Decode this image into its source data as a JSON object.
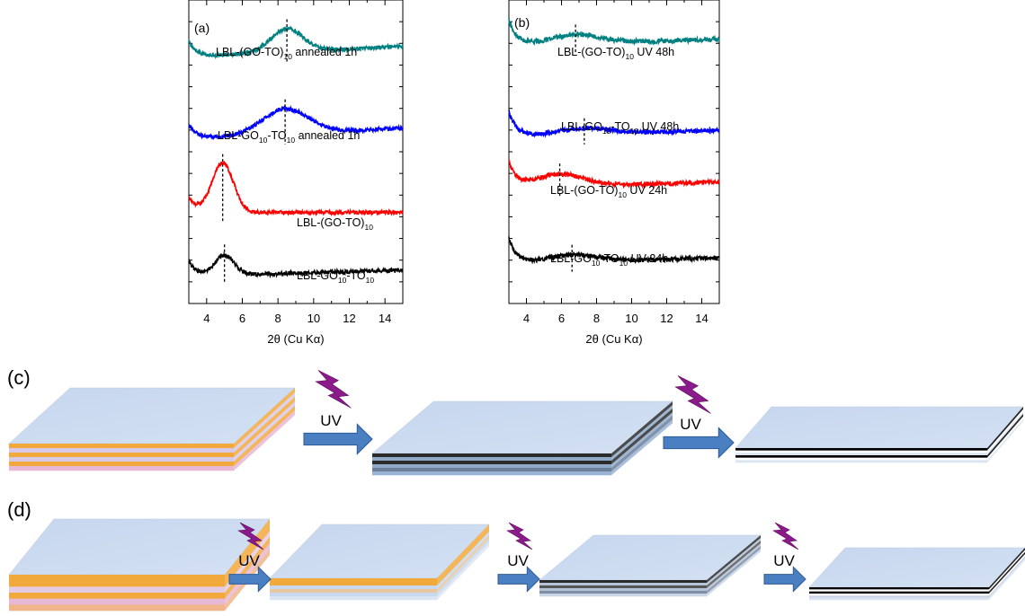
{
  "chart_data": [
    {
      "type": "line",
      "panel": "(a)",
      "xlabel": "2θ (Cu Kα)",
      "xlim": [
        3,
        15
      ],
      "xticks": [
        4,
        6,
        8,
        10,
        12,
        14
      ],
      "series": [
        {
          "label_main": "LBL-GO",
          "label_sub1": "10",
          "label_mid": "-TO",
          "label_sub2": "10",
          "label_tail": "",
          "color": "#000000",
          "peak": 5.0,
          "peak_height": 22,
          "peak_width": 0.55,
          "level": 0.1,
          "noise": 2.2
        },
        {
          "label_main": "LBL-(GO-TO)",
          "label_sub1": "10",
          "label_mid": "",
          "label_sub2": "",
          "label_tail": "",
          "color": "#ff0000",
          "peak": 4.9,
          "peak_height": 55,
          "peak_width": 0.6,
          "level": 0.3,
          "noise": 2.0
        },
        {
          "label_main": "LBL-GO",
          "label_sub1": "10",
          "label_mid": "-TO",
          "label_sub2": "10",
          "label_tail": " annealed 1h",
          "color": "#0000ff",
          "peak": 8.4,
          "peak_height": 28,
          "peak_width": 1.3,
          "level": 0.56,
          "noise": 2.2
        },
        {
          "label_main": "LBL-(GO-TO)",
          "label_sub1": "10",
          "label_mid": "",
          "label_sub2": "",
          "label_tail": " annealed 1h",
          "color": "#008080",
          "peak": 8.5,
          "peak_height": 26,
          "peak_width": 0.9,
          "level": 0.83,
          "noise": 2.2
        }
      ]
    },
    {
      "type": "line",
      "panel": "(b)",
      "xlabel": "2θ (Cu Kα)",
      "xlim": [
        3,
        15
      ],
      "xticks": [
        4,
        6,
        8,
        10,
        12,
        14
      ],
      "series": [
        {
          "label_main": "LBL-GO",
          "label_sub1": "10",
          "label_mid": "-TO",
          "label_sub2": "10",
          "label_tail": " UV 24h",
          "color": "#000000",
          "peak": 6.6,
          "peak_height": 8,
          "peak_width": 1.5,
          "level": 0.14,
          "noise": 2.4
        },
        {
          "label_main": "LBL-(GO-TO)",
          "label_sub1": "10",
          "label_mid": "",
          "label_sub2": "",
          "label_tail": " UV 24h",
          "color": "#ff0000",
          "peak": 5.9,
          "peak_height": 14,
          "peak_width": 1.4,
          "level": 0.39,
          "noise": 2.4
        },
        {
          "label_main": "LBL-GO",
          "label_sub1": "10",
          "label_mid": "-TO",
          "label_sub2": "10",
          "label_tail": " UV 48h",
          "color": "#0000ff",
          "peak": 7.3,
          "peak_height": 7,
          "peak_width": 1.5,
          "level": 0.56,
          "noise": 2.4
        },
        {
          "label_main": "LBL-(GO-TO)",
          "label_sub1": "10",
          "label_mid": "",
          "label_sub2": "",
          "label_tail": " UV 48h",
          "color": "#008080",
          "peak": 6.8,
          "peak_height": 10,
          "peak_width": 1.4,
          "level": 0.86,
          "noise": 2.6
        }
      ]
    }
  ],
  "schematics": {
    "c": {
      "tag": "(c)",
      "uv_label": "UV",
      "stacks": [
        {
          "stripes": [
            "#f2a93b",
            "#d8c9e6",
            "#f2a93b",
            "#d8c9e6",
            "#f2a93b",
            "#e7b9d6"
          ]
        },
        {
          "stripes": [
            "#2b2b2b",
            "#8fa9c9",
            "#2b2b2b",
            "#8fa9c9",
            "#6b7f99",
            "#9ab3d4"
          ]
        },
        {
          "stripes": [
            "#000000",
            "#ffffff",
            "#dbe5f2",
            "#000000",
            "#ffffff",
            "#dbe5f2"
          ]
        }
      ]
    },
    "d": {
      "tag": "(d)",
      "uv_label": "UV",
      "stacks": [
        {
          "stripes": [
            "#f2a93b",
            "#f2a93b",
            "#e4cbe3",
            "#f2a93b",
            "#e7b9d6",
            "#f0b58a"
          ]
        },
        {
          "stripes": [
            "#f2a93b",
            "#f2a93b",
            "#c8d8ee",
            "#e8c7a1",
            "#c8d8ee",
            "#dbe5f2"
          ]
        },
        {
          "stripes": [
            "#2b2b2b",
            "#b4c2d6",
            "#555555",
            "#b4c2d6",
            "#7d8ea6",
            "#c8d3e3"
          ]
        },
        {
          "stripes": [
            "#000000",
            "#ffffff",
            "#000000",
            "#ffffff",
            "#c9d4e6",
            "#dbe5f2"
          ]
        }
      ]
    }
  }
}
